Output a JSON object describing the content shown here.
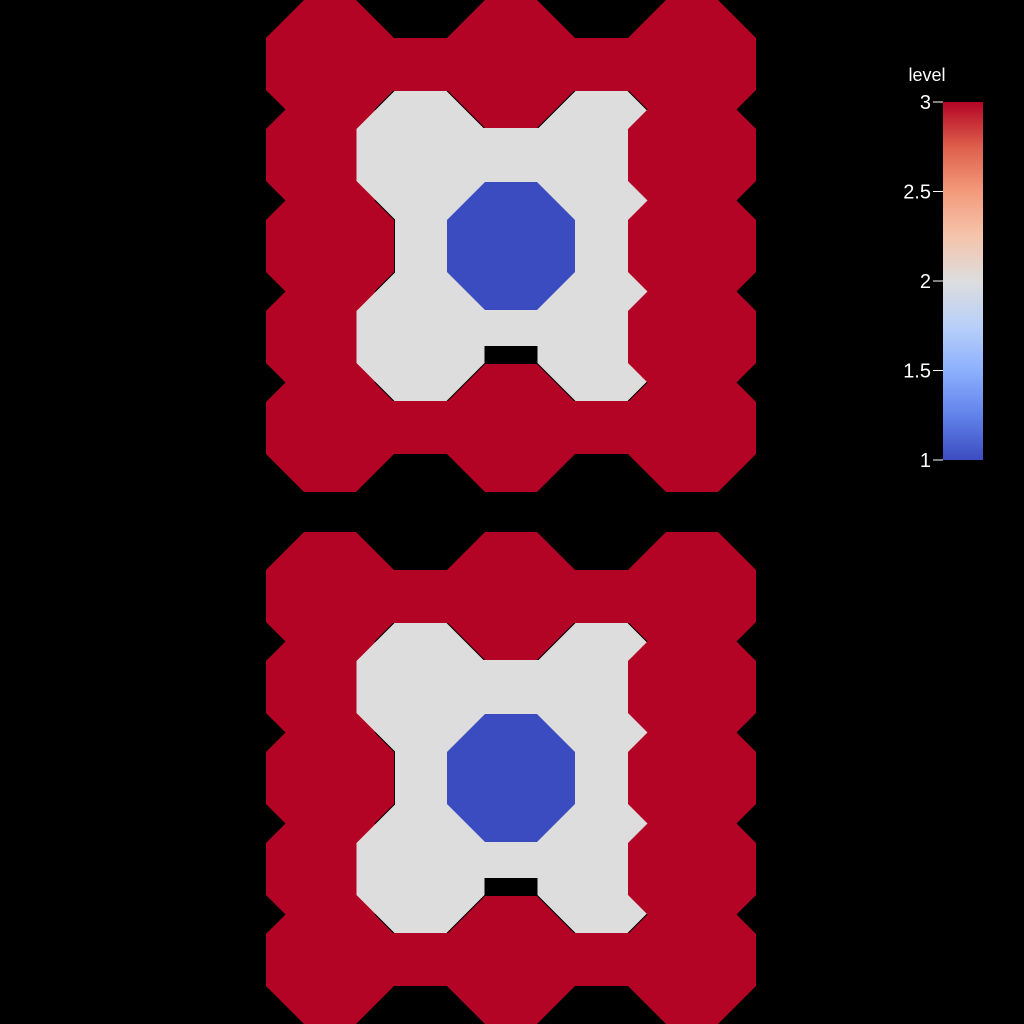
{
  "colors": {
    "background": "#000000",
    "level_1": "#3b4cc0",
    "level_2": "#dddddd",
    "level_3": "#b40426",
    "text": "#ffffff"
  },
  "chart_data": {
    "type": "heatmap",
    "cell_shape": "octagon",
    "panels": [
      {
        "grid": [
          [
            3,
            3,
            3
          ],
          [
            3,
            2,
            2,
            3
          ],
          [
            3,
            1,
            3
          ],
          [
            3,
            2,
            2,
            3
          ],
          [
            3,
            3,
            3
          ]
        ]
      },
      {
        "grid": [
          [
            3,
            3,
            3
          ],
          [
            3,
            2,
            2,
            3
          ],
          [
            3,
            1,
            3
          ],
          [
            3,
            2,
            2,
            3
          ],
          [
            3,
            3,
            3
          ]
        ]
      }
    ],
    "colorbar": {
      "title": "level",
      "colormap": "coolwarm",
      "range": [
        1,
        3
      ],
      "ticks": [
        1,
        1.5,
        2,
        2.5,
        3
      ],
      "tick_labels": [
        "1",
        "1.5",
        "2",
        "2.5",
        "3"
      ],
      "placement": "top-right"
    }
  }
}
